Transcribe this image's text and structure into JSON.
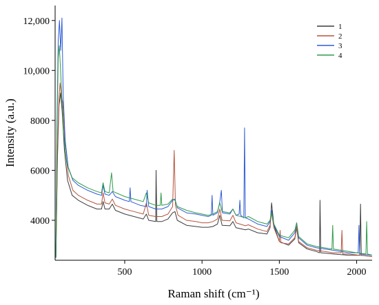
{
  "chart_data": {
    "type": "line",
    "xlabel": "Raman shift (cm⁻¹)",
    "ylabel": "Intensity (a.u.)",
    "xlim": [
      50,
      2100
    ],
    "ylim": [
      2400,
      12600
    ],
    "x_ticks": [
      500,
      1000,
      1500,
      2000
    ],
    "x_tick_labels": [
      "500",
      "1000",
      "1500",
      "2000"
    ],
    "y_ticks": [
      4000,
      6000,
      8000,
      10000,
      12000
    ],
    "y_tick_labels": [
      "4000",
      "6000",
      "8000",
      "10,000",
      "12,000"
    ],
    "grid": false,
    "legend_position": "top-right",
    "series": [
      {
        "name": "1",
        "color": "#3a3a3a",
        "points": [
          [
            55,
            2500
          ],
          [
            65,
            6500
          ],
          [
            75,
            8600
          ],
          [
            85,
            9100
          ],
          [
            95,
            8400
          ],
          [
            110,
            6800
          ],
          [
            130,
            5600
          ],
          [
            160,
            5000
          ],
          [
            200,
            4800
          ],
          [
            260,
            4600
          ],
          [
            320,
            4450
          ],
          [
            350,
            4450
          ],
          [
            360,
            4750
          ],
          [
            372,
            4450
          ],
          [
            400,
            4450
          ],
          [
            420,
            4650
          ],
          [
            440,
            4400
          ],
          [
            500,
            4250
          ],
          [
            560,
            4150
          ],
          [
            620,
            4050
          ],
          [
            640,
            4250
          ],
          [
            655,
            4000
          ],
          [
            700,
            3950
          ],
          [
            703,
            6000
          ],
          [
            708,
            3950
          ],
          [
            740,
            3950
          ],
          [
            780,
            4050
          ],
          [
            810,
            4300
          ],
          [
            825,
            4350
          ],
          [
            840,
            4000
          ],
          [
            900,
            3800
          ],
          [
            960,
            3750
          ],
          [
            1000,
            3720
          ],
          [
            1040,
            3720
          ],
          [
            1070,
            3750
          ],
          [
            1100,
            3850
          ],
          [
            1115,
            4200
          ],
          [
            1130,
            3800
          ],
          [
            1180,
            3780
          ],
          [
            1200,
            3950
          ],
          [
            1220,
            3700
          ],
          [
            1280,
            3620
          ],
          [
            1300,
            3650
          ],
          [
            1360,
            3500
          ],
          [
            1420,
            3450
          ],
          [
            1440,
            3700
          ],
          [
            1450,
            4700
          ],
          [
            1465,
            3800
          ],
          [
            1500,
            3150
          ],
          [
            1560,
            3000
          ],
          [
            1600,
            3250
          ],
          [
            1612,
            3700
          ],
          [
            1625,
            3100
          ],
          [
            1680,
            2850
          ],
          [
            1740,
            2750
          ],
          [
            1760,
            2700
          ],
          [
            1763,
            4800
          ],
          [
            1768,
            2700
          ],
          [
            1850,
            2650
          ],
          [
            1950,
            2600
          ],
          [
            2020,
            2600
          ],
          [
            2025,
            4650
          ],
          [
            2030,
            2600
          ],
          [
            2100,
            2550
          ]
        ]
      },
      {
        "name": "2",
        "color": "#b5533c",
        "points": [
          [
            55,
            2500
          ],
          [
            65,
            6800
          ],
          [
            75,
            8900
          ],
          [
            82,
            9500
          ],
          [
            90,
            9000
          ],
          [
            100,
            8700
          ],
          [
            115,
            6900
          ],
          [
            135,
            5800
          ],
          [
            165,
            5200
          ],
          [
            200,
            5000
          ],
          [
            260,
            4800
          ],
          [
            320,
            4650
          ],
          [
            350,
            4650
          ],
          [
            360,
            5100
          ],
          [
            372,
            4700
          ],
          [
            400,
            4650
          ],
          [
            420,
            4850
          ],
          [
            440,
            4600
          ],
          [
            500,
            4450
          ],
          [
            560,
            4350
          ],
          [
            620,
            4250
          ],
          [
            640,
            4700
          ],
          [
            655,
            4200
          ],
          [
            700,
            4150
          ],
          [
            740,
            4150
          ],
          [
            780,
            4250
          ],
          [
            810,
            4550
          ],
          [
            820,
            6800
          ],
          [
            828,
            4600
          ],
          [
            845,
            4200
          ],
          [
            900,
            4000
          ],
          [
            960,
            3950
          ],
          [
            1000,
            3900
          ],
          [
            1040,
            3900
          ],
          [
            1070,
            3950
          ],
          [
            1100,
            4050
          ],
          [
            1115,
            4450
          ],
          [
            1130,
            4000
          ],
          [
            1180,
            3980
          ],
          [
            1200,
            4200
          ],
          [
            1220,
            3900
          ],
          [
            1280,
            3780
          ],
          [
            1300,
            3820
          ],
          [
            1360,
            3650
          ],
          [
            1420,
            3550
          ],
          [
            1440,
            3800
          ],
          [
            1450,
            4300
          ],
          [
            1465,
            3700
          ],
          [
            1500,
            3150
          ],
          [
            1505,
            3600
          ],
          [
            1510,
            3100
          ],
          [
            1560,
            3050
          ],
          [
            1600,
            3300
          ],
          [
            1612,
            3750
          ],
          [
            1625,
            3150
          ],
          [
            1680,
            2900
          ],
          [
            1740,
            2800
          ],
          [
            1850,
            2700
          ],
          [
            1900,
            2700
          ],
          [
            1905,
            3600
          ],
          [
            1910,
            2650
          ],
          [
            1950,
            2650
          ],
          [
            2020,
            2600
          ],
          [
            2100,
            2550
          ]
        ]
      },
      {
        "name": "3",
        "color": "#2e5bd6",
        "points": [
          [
            55,
            2500
          ],
          [
            62,
            8000
          ],
          [
            70,
            11200
          ],
          [
            78,
            12000
          ],
          [
            86,
            10800
          ],
          [
            94,
            12100
          ],
          [
            102,
            9000
          ],
          [
            115,
            7200
          ],
          [
            135,
            6100
          ],
          [
            165,
            5600
          ],
          [
            200,
            5400
          ],
          [
            260,
            5200
          ],
          [
            320,
            5050
          ],
          [
            350,
            5000
          ],
          [
            360,
            5400
          ],
          [
            372,
            5050
          ],
          [
            400,
            5000
          ],
          [
            420,
            5150
          ],
          [
            440,
            4950
          ],
          [
            500,
            4800
          ],
          [
            530,
            4750
          ],
          [
            535,
            5300
          ],
          [
            540,
            4750
          ],
          [
            600,
            4600
          ],
          [
            640,
            4550
          ],
          [
            645,
            5200
          ],
          [
            655,
            4550
          ],
          [
            700,
            4450
          ],
          [
            740,
            4450
          ],
          [
            780,
            4550
          ],
          [
            810,
            4800
          ],
          [
            825,
            4850
          ],
          [
            840,
            4500
          ],
          [
            900,
            4300
          ],
          [
            960,
            4250
          ],
          [
            1000,
            4200
          ],
          [
            1040,
            4150
          ],
          [
            1060,
            4200
          ],
          [
            1065,
            5000
          ],
          [
            1070,
            4200
          ],
          [
            1100,
            4300
          ],
          [
            1115,
            4750
          ],
          [
            1125,
            5200
          ],
          [
            1132,
            4300
          ],
          [
            1180,
            4250
          ],
          [
            1200,
            4450
          ],
          [
            1220,
            4200
          ],
          [
            1240,
            4250
          ],
          [
            1245,
            4800
          ],
          [
            1250,
            4200
          ],
          [
            1270,
            4100
          ],
          [
            1275,
            7700
          ],
          [
            1280,
            4100
          ],
          [
            1300,
            4050
          ],
          [
            1360,
            3850
          ],
          [
            1420,
            3750
          ],
          [
            1440,
            3950
          ],
          [
            1450,
            4400
          ],
          [
            1465,
            3800
          ],
          [
            1500,
            3350
          ],
          [
            1560,
            3200
          ],
          [
            1600,
            3500
          ],
          [
            1612,
            3900
          ],
          [
            1625,
            3300
          ],
          [
            1680,
            3000
          ],
          [
            1740,
            2900
          ],
          [
            1850,
            2800
          ],
          [
            1950,
            2700
          ],
          [
            2010,
            2700
          ],
          [
            2015,
            3800
          ],
          [
            2020,
            2650
          ],
          [
            2100,
            2600
          ]
        ]
      },
      {
        "name": "4",
        "color": "#2e9a4a",
        "points": [
          [
            55,
            2500
          ],
          [
            62,
            7500
          ],
          [
            70,
            10500
          ],
          [
            77,
            11000
          ],
          [
            85,
            10000
          ],
          [
            93,
            9000
          ],
          [
            105,
            7500
          ],
          [
            125,
            6300
          ],
          [
            160,
            5700
          ],
          [
            200,
            5500
          ],
          [
            260,
            5300
          ],
          [
            320,
            5150
          ],
          [
            350,
            5100
          ],
          [
            360,
            5500
          ],
          [
            372,
            5150
          ],
          [
            400,
            5100
          ],
          [
            415,
            5900
          ],
          [
            425,
            5150
          ],
          [
            500,
            4950
          ],
          [
            560,
            4850
          ],
          [
            620,
            4750
          ],
          [
            640,
            5100
          ],
          [
            655,
            4700
          ],
          [
            700,
            4600
          ],
          [
            730,
            4600
          ],
          [
            735,
            5100
          ],
          [
            740,
            4600
          ],
          [
            780,
            4650
          ],
          [
            810,
            4850
          ],
          [
            825,
            4800
          ],
          [
            840,
            4550
          ],
          [
            900,
            4400
          ],
          [
            960,
            4300
          ],
          [
            1000,
            4250
          ],
          [
            1040,
            4200
          ],
          [
            1070,
            4250
          ],
          [
            1100,
            4350
          ],
          [
            1115,
            4700
          ],
          [
            1130,
            4350
          ],
          [
            1180,
            4300
          ],
          [
            1200,
            4450
          ],
          [
            1220,
            4200
          ],
          [
            1280,
            4100
          ],
          [
            1300,
            4150
          ],
          [
            1360,
            3950
          ],
          [
            1420,
            3850
          ],
          [
            1440,
            4000
          ],
          [
            1450,
            4300
          ],
          [
            1465,
            3850
          ],
          [
            1500,
            3400
          ],
          [
            1560,
            3300
          ],
          [
            1600,
            3600
          ],
          [
            1612,
            3900
          ],
          [
            1625,
            3350
          ],
          [
            1680,
            3050
          ],
          [
            1740,
            2950
          ],
          [
            1840,
            2850
          ],
          [
            1845,
            3800
          ],
          [
            1850,
            2850
          ],
          [
            1950,
            2750
          ],
          [
            2000,
            2700
          ],
          [
            2060,
            2650
          ],
          [
            2065,
            3950
          ],
          [
            2070,
            2650
          ],
          [
            2100,
            2600
          ]
        ]
      }
    ]
  }
}
